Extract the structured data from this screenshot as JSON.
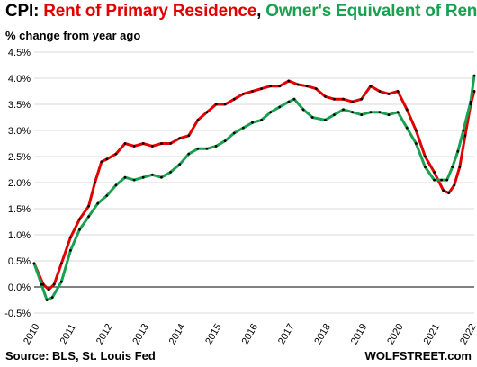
{
  "header": {
    "title_prefix": "CPI: ",
    "title_rent": "Rent of Primary Residence",
    "title_sep": ", ",
    "title_oer": "Owner's Equivalent of Rent",
    "subtitle": "% change from year ago"
  },
  "footer": {
    "source": "Source: BLS, St. Louis Fed",
    "credit": "WOLFSTREET.com"
  },
  "chart_data": {
    "type": "line",
    "title": "CPI: Rent of Primary Residence, Owner's Equivalent of Rent",
    "subtitle": "% change from year ago",
    "x_range": [
      2010,
      2022.1
    ],
    "ylim": [
      -0.5,
      4.5
    ],
    "y_ticks": [
      -0.5,
      0.0,
      0.5,
      1.0,
      1.5,
      2.0,
      2.5,
      3.0,
      3.5,
      4.0,
      4.5
    ],
    "y_tick_labels": [
      "-0.5%",
      "0.0%",
      "0.5%",
      "1.0%",
      "1.5%",
      "2.0%",
      "2.5%",
      "3.0%",
      "3.5%",
      "4.0%",
      "4.5%"
    ],
    "x_ticks": [
      2010,
      2011,
      2012,
      2013,
      2014,
      2015,
      2016,
      2017,
      2018,
      2019,
      2020,
      2021,
      2022
    ],
    "x_tick_labels": [
      "2010",
      "2011",
      "2012",
      "2013",
      "2014",
      "2015",
      "2016",
      "2017",
      "2018",
      "2019",
      "2020",
      "2021",
      "2022"
    ],
    "grid": "horizontal",
    "series": [
      {
        "name": "Rent of Primary Residence",
        "color": "#e00000",
        "points": [
          [
            2010.0,
            0.45
          ],
          [
            2010.25,
            0.05
          ],
          [
            2010.4,
            -0.05
          ],
          [
            2010.55,
            0.05
          ],
          [
            2010.75,
            0.45
          ],
          [
            2011.0,
            0.95
          ],
          [
            2011.25,
            1.3
          ],
          [
            2011.5,
            1.55
          ],
          [
            2011.67,
            2.0
          ],
          [
            2011.85,
            2.4
          ],
          [
            2012.0,
            2.45
          ],
          [
            2012.25,
            2.55
          ],
          [
            2012.5,
            2.75
          ],
          [
            2012.75,
            2.7
          ],
          [
            2013.0,
            2.75
          ],
          [
            2013.25,
            2.7
          ],
          [
            2013.5,
            2.75
          ],
          [
            2013.75,
            2.75
          ],
          [
            2014.0,
            2.85
          ],
          [
            2014.25,
            2.9
          ],
          [
            2014.5,
            3.2
          ],
          [
            2014.75,
            3.35
          ],
          [
            2015.0,
            3.5
          ],
          [
            2015.25,
            3.5
          ],
          [
            2015.5,
            3.6
          ],
          [
            2015.75,
            3.7
          ],
          [
            2016.0,
            3.75
          ],
          [
            2016.25,
            3.8
          ],
          [
            2016.5,
            3.85
          ],
          [
            2016.75,
            3.85
          ],
          [
            2017.0,
            3.95
          ],
          [
            2017.25,
            3.88
          ],
          [
            2017.5,
            3.85
          ],
          [
            2017.75,
            3.8
          ],
          [
            2018.0,
            3.65
          ],
          [
            2018.25,
            3.6
          ],
          [
            2018.5,
            3.6
          ],
          [
            2018.75,
            3.55
          ],
          [
            2019.0,
            3.6
          ],
          [
            2019.25,
            3.85
          ],
          [
            2019.5,
            3.75
          ],
          [
            2019.75,
            3.7
          ],
          [
            2020.0,
            3.75
          ],
          [
            2020.25,
            3.4
          ],
          [
            2020.5,
            3.0
          ],
          [
            2020.75,
            2.5
          ],
          [
            2021.0,
            2.2
          ],
          [
            2021.25,
            1.85
          ],
          [
            2021.4,
            1.8
          ],
          [
            2021.55,
            1.95
          ],
          [
            2021.7,
            2.3
          ],
          [
            2021.85,
            2.9
          ],
          [
            2022.0,
            3.5
          ],
          [
            2022.1,
            3.75
          ]
        ]
      },
      {
        "name": "Owner's Equivalent of Rent",
        "color": "#1aa050",
        "points": [
          [
            2010.0,
            0.45
          ],
          [
            2010.2,
            0.05
          ],
          [
            2010.35,
            -0.25
          ],
          [
            2010.5,
            -0.2
          ],
          [
            2010.75,
            0.1
          ],
          [
            2011.0,
            0.7
          ],
          [
            2011.25,
            1.1
          ],
          [
            2011.5,
            1.35
          ],
          [
            2011.75,
            1.6
          ],
          [
            2012.0,
            1.75
          ],
          [
            2012.25,
            1.95
          ],
          [
            2012.5,
            2.1
          ],
          [
            2012.75,
            2.05
          ],
          [
            2013.0,
            2.1
          ],
          [
            2013.25,
            2.15
          ],
          [
            2013.5,
            2.1
          ],
          [
            2013.75,
            2.2
          ],
          [
            2014.0,
            2.35
          ],
          [
            2014.25,
            2.55
          ],
          [
            2014.5,
            2.65
          ],
          [
            2014.75,
            2.65
          ],
          [
            2015.0,
            2.7
          ],
          [
            2015.25,
            2.8
          ],
          [
            2015.5,
            2.95
          ],
          [
            2015.75,
            3.05
          ],
          [
            2016.0,
            3.15
          ],
          [
            2016.25,
            3.2
          ],
          [
            2016.5,
            3.35
          ],
          [
            2016.75,
            3.45
          ],
          [
            2017.0,
            3.55
          ],
          [
            2017.15,
            3.6
          ],
          [
            2017.4,
            3.4
          ],
          [
            2017.65,
            3.25
          ],
          [
            2018.0,
            3.2
          ],
          [
            2018.25,
            3.3
          ],
          [
            2018.5,
            3.4
          ],
          [
            2018.75,
            3.35
          ],
          [
            2019.0,
            3.3
          ],
          [
            2019.25,
            3.35
          ],
          [
            2019.5,
            3.35
          ],
          [
            2019.75,
            3.3
          ],
          [
            2020.0,
            3.35
          ],
          [
            2020.25,
            3.05
          ],
          [
            2020.5,
            2.75
          ],
          [
            2020.75,
            2.3
          ],
          [
            2021.0,
            2.05
          ],
          [
            2021.2,
            2.05
          ],
          [
            2021.35,
            2.05
          ],
          [
            2021.5,
            2.3
          ],
          [
            2021.65,
            2.6
          ],
          [
            2021.8,
            3.0
          ],
          [
            2022.0,
            3.55
          ],
          [
            2022.1,
            4.05
          ]
        ]
      }
    ]
  }
}
